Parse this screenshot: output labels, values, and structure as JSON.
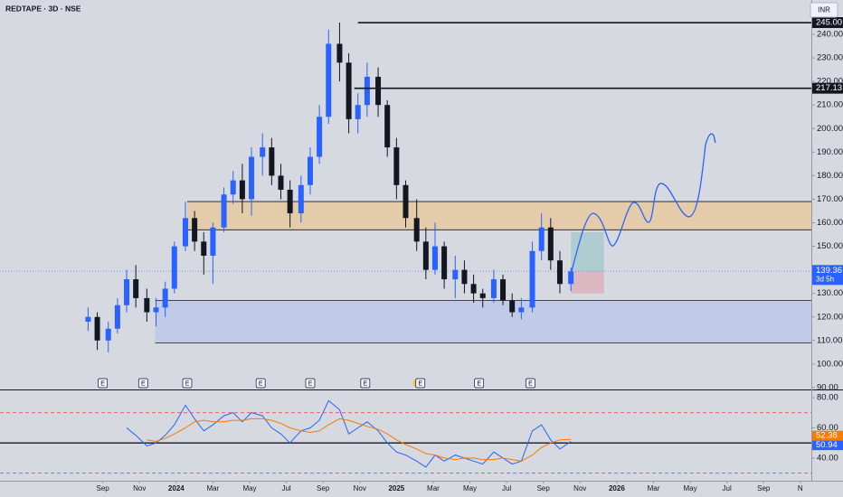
{
  "chart_data": [
    {
      "type": "candlestick",
      "title": "REDTAPE · 3D · NSE",
      "currency": "INR",
      "x": [
        -0.8,
        -0.3,
        0.3,
        0.8,
        1.3,
        1.8,
        2.4,
        2.9,
        3.4,
        3.9,
        4.5,
        5.0,
        5.5,
        6.0,
        6.6,
        7.1,
        7.6,
        8.1,
        8.7,
        9.2,
        9.7,
        10.2,
        10.8,
        11.3,
        11.8,
        12.3,
        12.9,
        13.4,
        13.9,
        14.4,
        15.0,
        15.5,
        16.0,
        16.5,
        17.1,
        17.6,
        18.1,
        18.6,
        19.2,
        19.7,
        20.2,
        20.7,
        21.3,
        21.8,
        22.3,
        22.8,
        23.4,
        23.9,
        24.4,
        24.9,
        25.5
      ],
      "open": [
        118,
        120,
        110,
        115,
        125,
        136,
        128,
        122,
        124,
        132,
        150,
        162,
        152,
        146,
        158,
        172,
        178,
        170,
        188,
        192,
        180,
        174,
        164,
        176,
        188,
        205,
        236,
        228,
        204,
        210,
        222,
        210,
        192,
        176,
        162,
        152,
        140,
        150,
        136,
        140,
        134,
        130,
        128,
        136,
        127,
        122,
        124,
        148,
        158,
        144,
        134
      ],
      "high": [
        124,
        122,
        118,
        128,
        140,
        142,
        132,
        128,
        135,
        152,
        169,
        165,
        156,
        160,
        175,
        182,
        185,
        192,
        198,
        196,
        185,
        178,
        180,
        192,
        210,
        242,
        245,
        232,
        215,
        228,
        226,
        212,
        196,
        178,
        170,
        158,
        160,
        152,
        146,
        144,
        138,
        132,
        140,
        138,
        130,
        128,
        152,
        164,
        162,
        148,
        141
      ],
      "low": [
        114,
        106,
        105,
        113,
        122,
        124,
        118,
        116,
        120,
        130,
        148,
        148,
        138,
        134,
        156,
        168,
        164,
        163,
        180,
        176,
        170,
        158,
        160,
        172,
        185,
        202,
        220,
        198,
        198,
        205,
        205,
        188,
        170,
        158,
        148,
        136,
        138,
        132,
        128,
        130,
        126,
        124,
        126,
        125,
        120,
        119,
        122,
        144,
        140,
        130,
        131
      ],
      "close": [
        120,
        110,
        115,
        125,
        136,
        128,
        122,
        124,
        132,
        150,
        162,
        152,
        146,
        158,
        172,
        178,
        170,
        188,
        192,
        180,
        174,
        164,
        176,
        188,
        205,
        236,
        228,
        204,
        210,
        222,
        210,
        192,
        176,
        162,
        152,
        140,
        150,
        136,
        140,
        134,
        130,
        128,
        136,
        127,
        122,
        124,
        148,
        158,
        144,
        134,
        139.36
      ],
      "up_color": "#2962ff",
      "down_color": "#131722",
      "xlim": [
        -5.6,
        38.6
      ],
      "ylim": [
        89.2,
        254.6
      ],
      "xticks": [
        {
          "value": 0,
          "label": "Sep"
        },
        {
          "value": 2,
          "label": "Nov"
        },
        {
          "value": 4,
          "label": "2024"
        },
        {
          "value": 6,
          "label": "Mar"
        },
        {
          "value": 8,
          "label": "May"
        },
        {
          "value": 10,
          "label": "Jul"
        },
        {
          "value": 12,
          "label": "Sep"
        },
        {
          "value": 14,
          "label": "Nov"
        },
        {
          "value": 16,
          "label": "2025"
        },
        {
          "value": 18,
          "label": "Mar"
        },
        {
          "value": 20,
          "label": "May"
        },
        {
          "value": 22,
          "label": "Jul"
        },
        {
          "value": 24,
          "label": "Sep"
        },
        {
          "value": 26,
          "label": "Nov"
        },
        {
          "value": 28,
          "label": "2026"
        },
        {
          "value": 30,
          "label": "Mar"
        },
        {
          "value": 32,
          "label": "May"
        },
        {
          "value": 34,
          "label": "Jul"
        },
        {
          "value": 36,
          "label": "Sep"
        },
        {
          "value": 38,
          "label": "N"
        }
      ],
      "yticks": [
        {
          "value": 90,
          "label": "90.00"
        },
        {
          "value": 100,
          "label": "100.00"
        },
        {
          "value": 110,
          "label": "110.00"
        },
        {
          "value": 120,
          "label": "120.00"
        },
        {
          "value": 130,
          "label": "130.00"
        },
        {
          "value": 140,
          "label": "140.00"
        },
        {
          "value": 150,
          "label": "150.00"
        },
        {
          "value": 160,
          "label": "160.00"
        },
        {
          "value": 170,
          "label": "170.00"
        },
        {
          "value": 180,
          "label": "180.00"
        },
        {
          "value": 190,
          "label": "190.00"
        },
        {
          "value": 200,
          "label": "200.00"
        },
        {
          "value": 210,
          "label": "210.00"
        },
        {
          "value": 220,
          "label": "220.00"
        },
        {
          "value": 230,
          "label": "230.00"
        },
        {
          "value": 240,
          "label": "240.00"
        }
      ],
      "levels": [
        {
          "value": 245,
          "label": "245.00",
          "from_x": 13.9
        },
        {
          "value": 217.13,
          "label": "217.13",
          "from_x": 13.7
        }
      ],
      "zones": [
        {
          "low": 157,
          "high": 169,
          "from_x": 4.6,
          "color": "#e8c79a"
        },
        {
          "low": 109,
          "high": 127,
          "from_x": 2.85,
          "color": "#b9c6ea"
        }
      ],
      "position": {
        "from_x": 25.5,
        "to_x": 27.3,
        "entry": 139.36,
        "target": 156,
        "stop": 130
      },
      "countdown": "3d 5h",
      "earnings": [
        {
          "x": 0,
          "label": "E"
        },
        {
          "x": 2.2,
          "label": "E"
        },
        {
          "x": 4.6,
          "label": "E"
        },
        {
          "x": 8.6,
          "label": "E"
        },
        {
          "x": 11.3,
          "label": "E"
        },
        {
          "x": 14.3,
          "label": "E"
        },
        {
          "x": 17.3,
          "label": "E"
        },
        {
          "x": 20.5,
          "label": "E"
        },
        {
          "x": 23.3,
          "label": "E"
        }
      ]
    },
    {
      "type": "line",
      "x": [
        -0.8,
        -0.3,
        0.3,
        0.8,
        1.3,
        1.8,
        2.4,
        2.9,
        3.4,
        3.9,
        4.5,
        5.0,
        5.5,
        6.0,
        6.6,
        7.1,
        7.6,
        8.1,
        8.7,
        9.2,
        9.7,
        10.2,
        10.8,
        11.3,
        11.8,
        12.3,
        12.9,
        13.4,
        13.9,
        14.4,
        15.0,
        15.5,
        16.0,
        16.5,
        17.1,
        17.6,
        18.1,
        18.6,
        19.2,
        19.7,
        20.2,
        20.7,
        21.3,
        21.8,
        22.3,
        22.8,
        23.4,
        23.9,
        24.4,
        24.9,
        25.5
      ],
      "xlim": [
        -5.6,
        38.6
      ],
      "ylim": [
        25,
        84.8
      ],
      "yticks": [
        {
          "value": 40,
          "label": "40.00"
        },
        {
          "value": 60,
          "label": "60.00"
        },
        {
          "value": 80,
          "label": "80.00"
        }
      ],
      "guides": [
        70,
        30
      ],
      "hline": 50,
      "series": [
        {
          "color": "#2962ff",
          "values": [
            null,
            null,
            null,
            null,
            60,
            55,
            48,
            50,
            55,
            62,
            75,
            66,
            58,
            62,
            68,
            70,
            64,
            70,
            68,
            60,
            56,
            50,
            58,
            60,
            65,
            78,
            72,
            56,
            60,
            64,
            58,
            50,
            44,
            42,
            38,
            34,
            42,
            38,
            42,
            40,
            38,
            36,
            44,
            40,
            36,
            38,
            58,
            62,
            52,
            46,
            50.94
          ]
        },
        {
          "color": "#f57c00",
          "values": [
            null,
            null,
            null,
            null,
            null,
            null,
            52,
            51,
            53,
            56,
            60,
            64,
            65,
            64,
            64,
            65,
            65,
            66,
            66,
            65,
            63,
            60,
            58,
            57,
            58,
            62,
            66,
            65,
            63,
            61,
            59,
            56,
            52,
            49,
            46,
            43,
            42,
            40,
            39,
            40,
            40,
            39,
            39,
            40,
            39,
            38,
            42,
            47,
            50,
            52,
            52.38
          ]
        }
      ]
    }
  ]
}
